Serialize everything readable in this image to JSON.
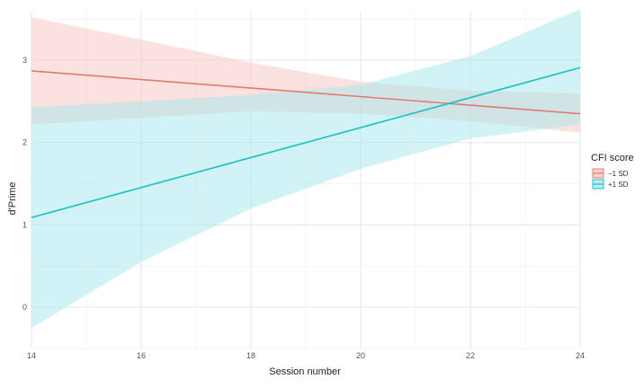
{
  "chart_data": {
    "type": "line",
    "xlabel": "Session number",
    "ylabel": "d'Prime",
    "xlim": [
      14,
      24
    ],
    "ylim": [
      -0.5,
      3.6
    ],
    "x_ticks": [
      14,
      16,
      18,
      20,
      22,
      24
    ],
    "y_ticks": [
      0,
      1,
      2,
      3
    ],
    "grid": true,
    "legend": {
      "title": "CFI score",
      "position": "right"
    },
    "series": [
      {
        "name": "−1 SD",
        "color": "#E07B6F",
        "band_color": "#F8C8C4",
        "x": [
          14,
          24
        ],
        "y": [
          2.87,
          2.35
        ],
        "ribbon_x": [
          14,
          16,
          18,
          20,
          22,
          24
        ],
        "ribbon_lower": [
          2.22,
          2.3,
          2.38,
          2.35,
          2.26,
          2.12
        ],
        "ribbon_upper": [
          3.52,
          3.25,
          2.97,
          2.74,
          2.63,
          2.6
        ]
      },
      {
        "name": "+1 SD",
        "color": "#1EC2C4",
        "band_color": "#A6E8EC",
        "x": [
          14,
          24
        ],
        "y": [
          1.09,
          2.91
        ],
        "ribbon_x": [
          14,
          16,
          18,
          20,
          22,
          24
        ],
        "ribbon_lower": [
          -0.25,
          0.55,
          1.2,
          1.68,
          2.05,
          2.22
        ],
        "ribbon_upper": [
          2.43,
          2.5,
          2.58,
          2.7,
          3.05,
          3.62
        ]
      }
    ]
  }
}
